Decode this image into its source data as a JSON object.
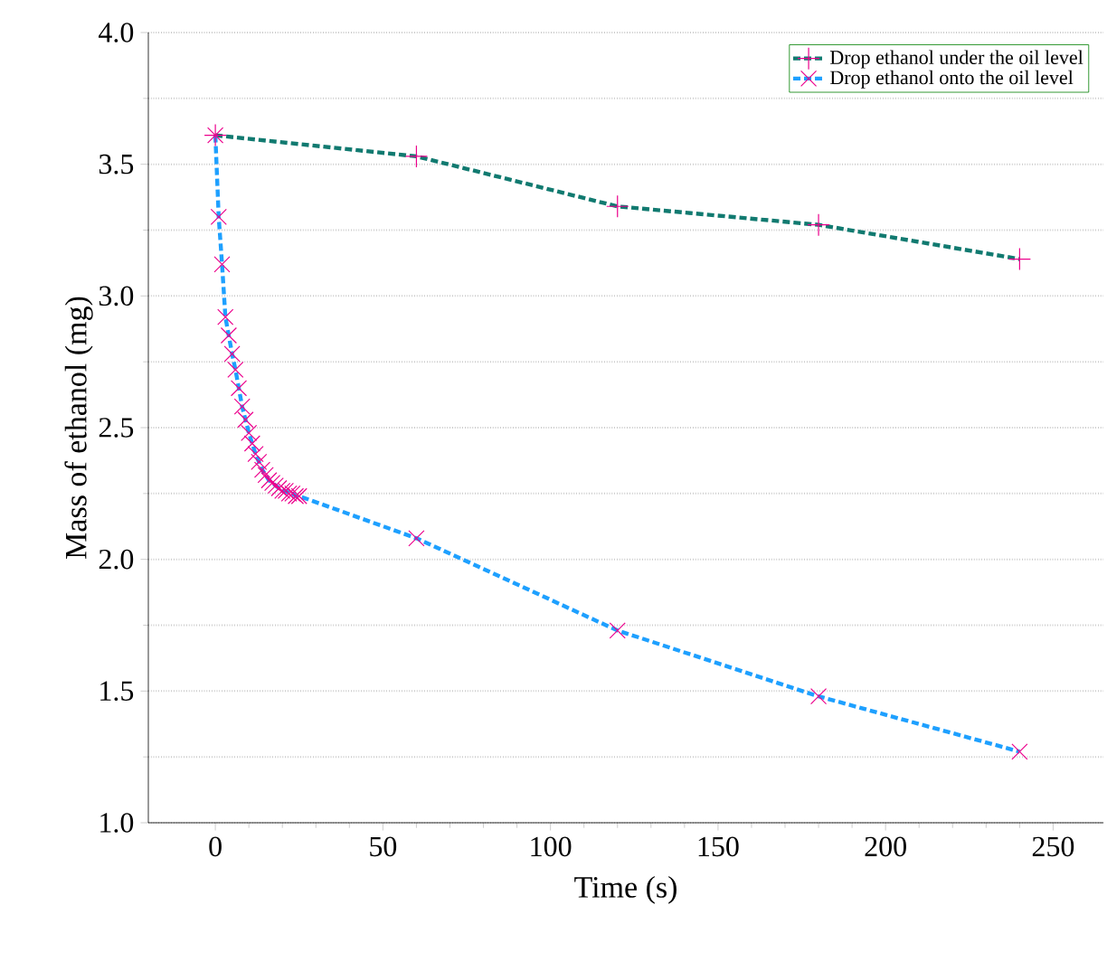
{
  "chart_data": {
    "type": "line",
    "xlabel": "Time (s)",
    "ylabel": "Mass of ethanol (mg)",
    "xlim": [
      -20,
      265
    ],
    "xticks": [
      0,
      50,
      100,
      150,
      200,
      250
    ],
    "ylim": [
      1.0,
      4.0
    ],
    "yticks": [
      {
        "value": 1.0,
        "label": "1.0"
      },
      {
        "value": 1.5,
        "label": "1.5"
      },
      {
        "value": 2.0,
        "label": "2.0"
      },
      {
        "value": 2.5,
        "label": "2.5"
      },
      {
        "value": 3.0,
        "label": "3.0"
      },
      {
        "value": 3.5,
        "label": "3.5"
      },
      {
        "value": 4.0,
        "label": "4.0"
      }
    ],
    "grid": "y",
    "legend": "top right",
    "line_style": "dashed",
    "series": [
      {
        "name": "Drop ethanol under the oil level",
        "color": "#117a70",
        "marker": "plus",
        "x": [
          0,
          60,
          120,
          180,
          240
        ],
        "values": [
          3.61,
          3.53,
          3.34,
          3.27,
          3.14
        ]
      },
      {
        "name": "Drop ethanol onto the oil level",
        "color": "#1ea0ff",
        "marker": "cross",
        "x": [
          0,
          1,
          2,
          3,
          4,
          5,
          6,
          7,
          8,
          9,
          10,
          11,
          12,
          13,
          14,
          15,
          16,
          17,
          18,
          19,
          20,
          21,
          22,
          23,
          24,
          25,
          60,
          120,
          180,
          240
        ],
        "values": [
          3.61,
          3.3,
          3.12,
          2.92,
          2.85,
          2.78,
          2.72,
          2.65,
          2.58,
          2.53,
          2.48,
          2.44,
          2.4,
          2.37,
          2.34,
          2.32,
          2.3,
          2.29,
          2.28,
          2.27,
          2.26,
          2.26,
          2.25,
          2.25,
          2.24,
          2.24,
          2.08,
          1.73,
          1.48,
          1.27
        ]
      }
    ]
  }
}
